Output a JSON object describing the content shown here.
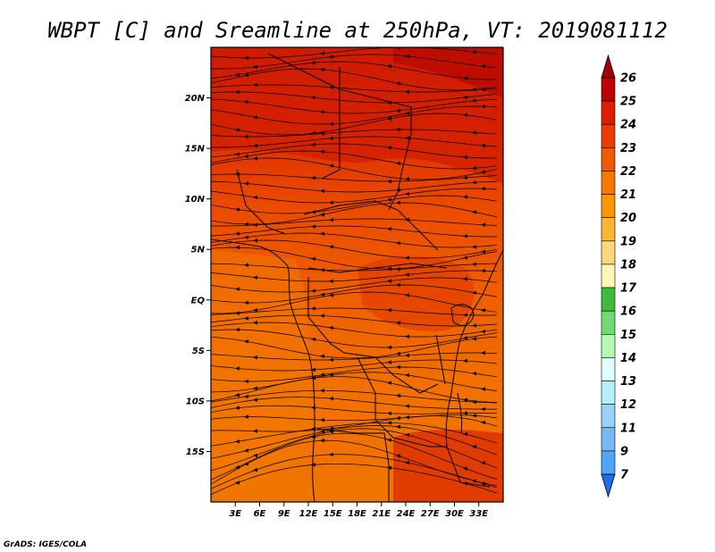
{
  "title": "WBPT [C] and Sreamline at 250hPa, VT: 2019081112",
  "credit": "GrADS: IGES/COLA",
  "map": {
    "lat_range": [
      -20,
      25
    ],
    "lon_range": [
      0,
      36
    ],
    "lat_ticks": [
      {
        "value": 20,
        "label": "20N"
      },
      {
        "value": 15,
        "label": "15N"
      },
      {
        "value": 10,
        "label": "10N"
      },
      {
        "value": 5,
        "label": "5N"
      },
      {
        "value": 0,
        "label": "EQ"
      },
      {
        "value": -5,
        "label": "5S"
      },
      {
        "value": -10,
        "label": "10S"
      },
      {
        "value": -15,
        "label": "15S"
      }
    ],
    "lon_ticks": [
      {
        "value": 3,
        "label": "3E"
      },
      {
        "value": 6,
        "label": "6E"
      },
      {
        "value": 9,
        "label": "9E"
      },
      {
        "value": 12,
        "label": "12E"
      },
      {
        "value": 15,
        "label": "15E"
      },
      {
        "value": 18,
        "label": "18E"
      },
      {
        "value": 21,
        "label": "21E"
      },
      {
        "value": 24,
        "label": "24E"
      },
      {
        "value": 27,
        "label": "27E"
      },
      {
        "value": 30,
        "label": "30E"
      },
      {
        "value": 33,
        "label": "33E"
      }
    ]
  },
  "colorbar": {
    "over_color": "#a50000",
    "under_color": "#1e6eeb",
    "levels": [
      {
        "label": "26",
        "color": "#c00000"
      },
      {
        "label": "25",
        "color": "#dc1e00"
      },
      {
        "label": "24",
        "color": "#eb3c00"
      },
      {
        "label": "23",
        "color": "#f05a00"
      },
      {
        "label": "22",
        "color": "#f57800"
      },
      {
        "label": "21",
        "color": "#fa9600"
      },
      {
        "label": "20",
        "color": "#ffb432"
      },
      {
        "label": "19",
        "color": "#ffd778"
      },
      {
        "label": "18",
        "color": "#fff5b4"
      },
      {
        "label": "17",
        "color": "#3cbe3c"
      },
      {
        "label": "16",
        "color": "#6edc6e"
      },
      {
        "label": "15",
        "color": "#b4fab4"
      },
      {
        "label": "14",
        "color": "#e1ffff"
      },
      {
        "label": "13",
        "color": "#b4f0fa"
      },
      {
        "label": "12",
        "color": "#96d2fa"
      },
      {
        "label": "11",
        "color": "#78b9fa"
      },
      {
        "label": "9",
        "color": "#50a5f5"
      },
      {
        "label": "7",
        "color": "#3c96f5"
      }
    ]
  },
  "colors": {
    "field_low": "#f07800",
    "field_mid": "#eb5000",
    "field_high": "#d22800",
    "field_peak": "#c00000",
    "streamline": "#000000",
    "boundary": "#000000"
  }
}
